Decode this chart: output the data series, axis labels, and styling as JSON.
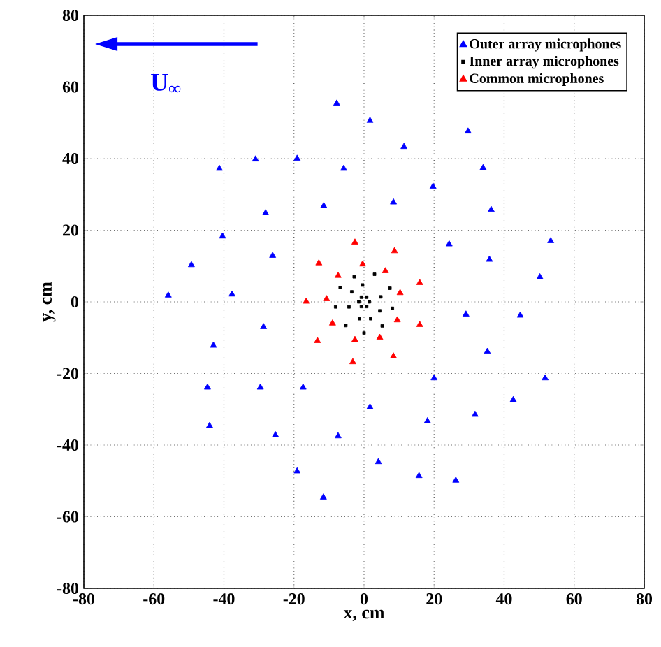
{
  "chart_data": {
    "type": "scatter",
    "xlabel": "x, cm",
    "ylabel": "y, cm",
    "annotations": [
      "U$_{∞}$"
    ],
    "xlim": [
      -80,
      80
    ],
    "ylim": [
      -80,
      80
    ],
    "xticks": [
      -80,
      -60,
      -40,
      -20,
      0,
      20,
      40,
      60,
      80
    ],
    "yticks": [
      -80,
      -60,
      -40,
      -20,
      0,
      20,
      40,
      60,
      80
    ],
    "grid": true,
    "legend": "top right",
    "series": [
      {
        "name": "Outer array microphones",
        "color": "#0000ff",
        "marker": "triangle",
        "x": [
          -7.8,
          1.7,
          11.4,
          29.7,
          -41.3,
          -31,
          -19.1,
          -5.8,
          34,
          19.7,
          8.4,
          36.3,
          -28.1,
          -11.5,
          -40.4,
          -49.3,
          -26.1,
          24.3,
          53.3,
          35.8,
          50.2,
          -55.9,
          -37.7,
          -28.7,
          -43,
          -44.7,
          -29.6,
          -17.4,
          -44.1,
          -25.3,
          -7.4,
          -19.1,
          -11.6,
          29.1,
          44.6,
          35.2,
          20,
          51.7,
          42.6,
          31.7,
          1.7,
          18.1,
          4.1,
          15.7,
          26.2
        ],
        "values": [
          55.4,
          50.6,
          43.3,
          47.6,
          37.2,
          39.8,
          40,
          37.2,
          37.4,
          32.2,
          27.8,
          25.7,
          24.8,
          26.8,
          18.3,
          10.3,
          12.9,
          16.1,
          17,
          11.8,
          6.9,
          1.8,
          2.1,
          -7,
          -12.2,
          -23.9,
          -23.9,
          -23.9,
          -34.6,
          -37.2,
          -37.5,
          -47.3,
          -54.6,
          -3.5,
          -3.8,
          -13.9,
          -21.3,
          -21.3,
          -27.4,
          -31.5,
          -29.4,
          -33.3,
          -44.7,
          -48.6,
          -49.9
        ]
      },
      {
        "name": "Inner array microphones",
        "color": "#000000",
        "marker": "square",
        "x": [
          3.0,
          -2.8,
          7.4,
          -0.4,
          -6.8,
          -3.5,
          4.8,
          -8.1,
          -4.3,
          8.1,
          4.5,
          -5.2,
          1.9,
          -1.3,
          5.2,
          0,
          1.5,
          0.75,
          -0.75,
          -1.5,
          -0.75,
          0.75
        ],
        "values": [
          7.7,
          7.0,
          3.8,
          4.7,
          4.0,
          2.8,
          1.4,
          -1.4,
          -1.4,
          -1.8,
          -2.5,
          -6.6,
          -4.7,
          -4.7,
          -6.7,
          -8.7,
          0,
          1.3,
          1.3,
          0,
          -1.3,
          -1.3
        ]
      },
      {
        "name": "Common microphones",
        "color": "#ff0000",
        "marker": "triangle",
        "x": [
          -2.6,
          8.7,
          -12.9,
          -0.4,
          6.1,
          15.9,
          -7.4,
          10.3,
          -10.7,
          -16.5,
          9.5,
          15.9,
          -9.0,
          -13.3,
          -2.6,
          4.5,
          8.4,
          -3.2
        ],
        "values": [
          16.6,
          14.2,
          10.8,
          10.5,
          8.6,
          5.3,
          7.3,
          2.5,
          0.8,
          0.1,
          -5.1,
          -6.4,
          -6.0,
          -10.9,
          -10.6,
          -10.0,
          -15.2,
          -16.8
        ]
      }
    ]
  }
}
